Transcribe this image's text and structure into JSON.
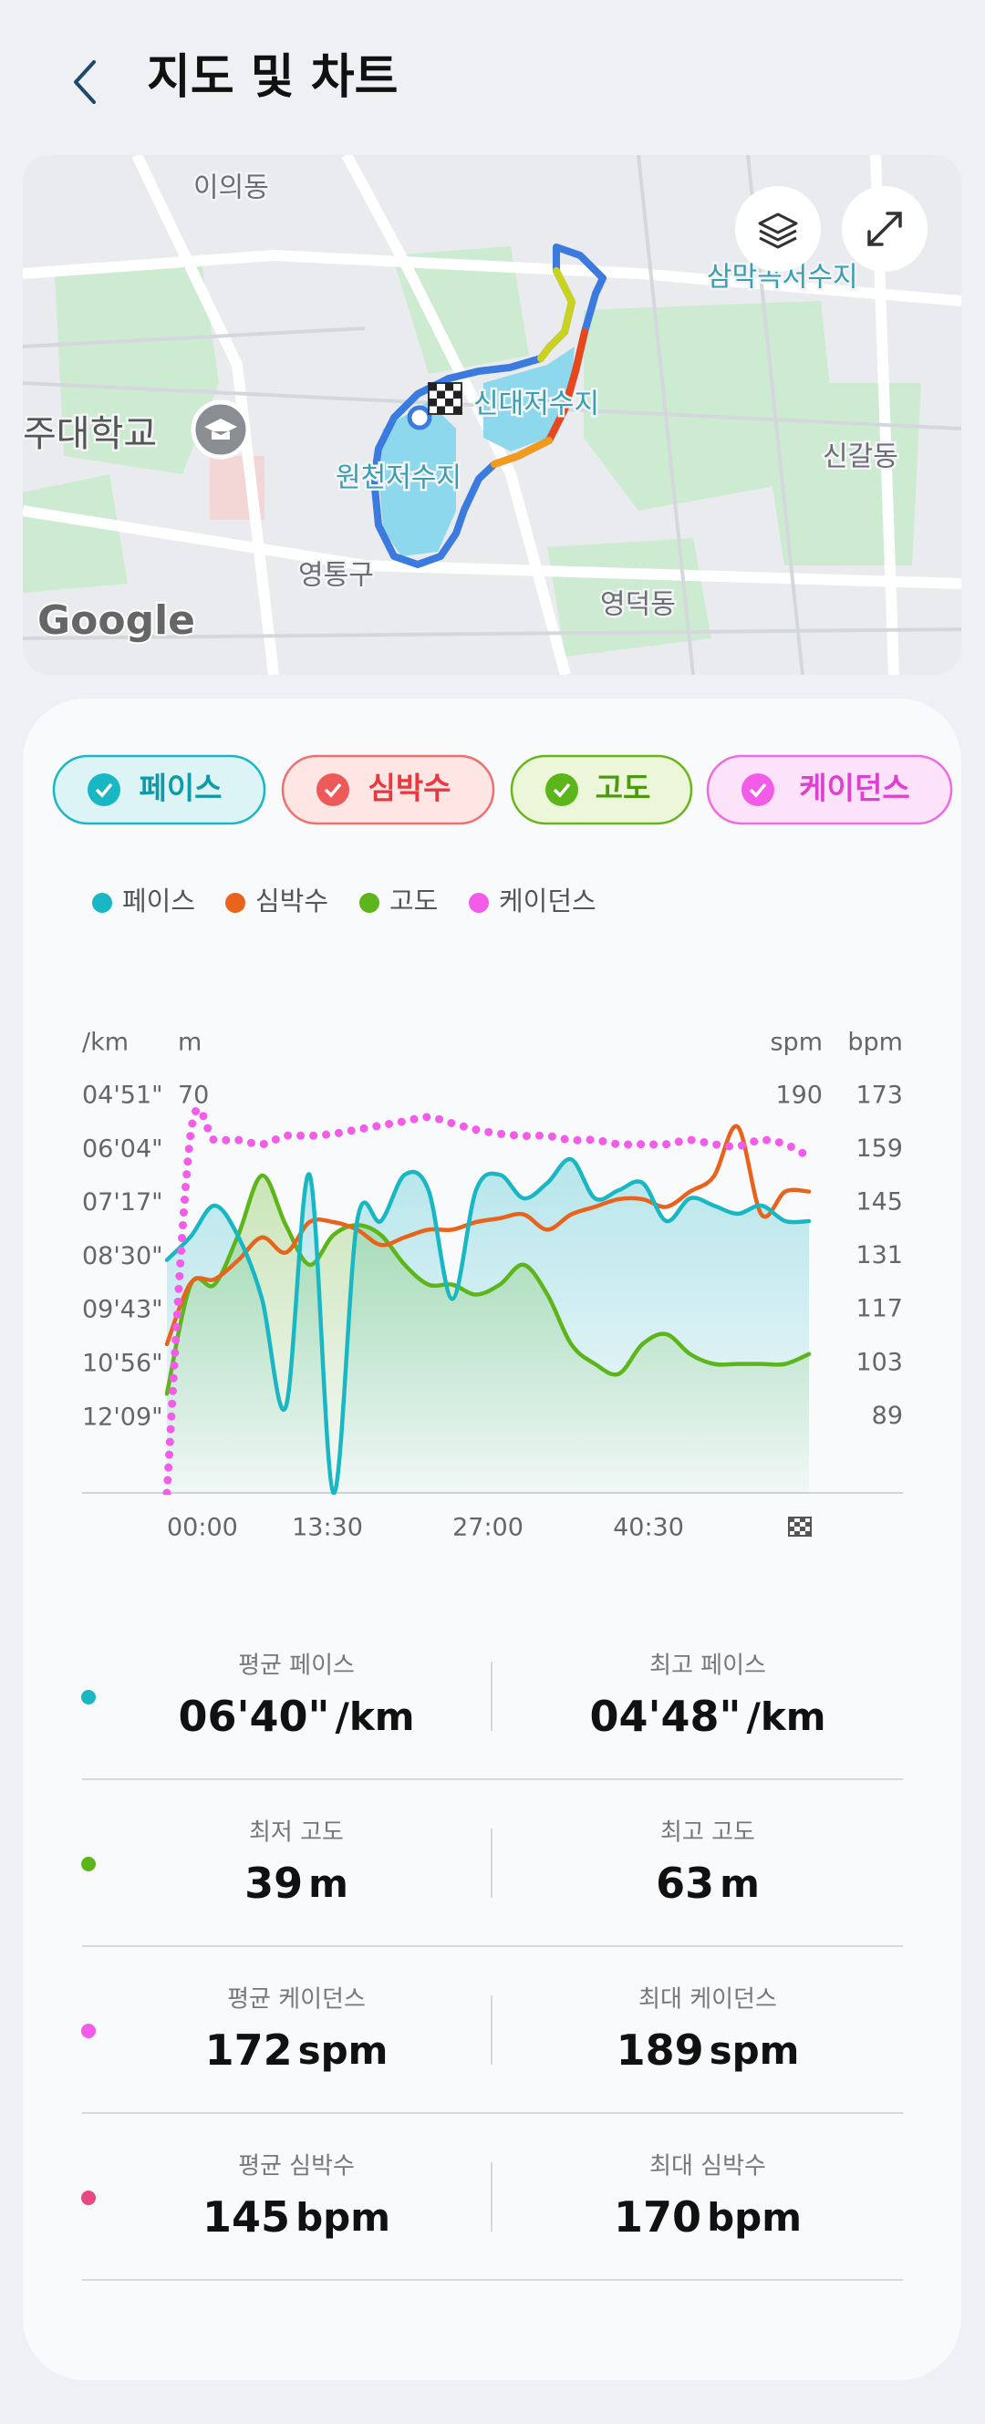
{
  "header": {
    "title": "지도 및 차트"
  },
  "map": {
    "labels": [
      "이의동",
      "삼막곡저수지",
      "신대저수지",
      "원천저수지",
      "주대학교",
      "신갈동",
      "영통구",
      "영덕동"
    ],
    "attribution": "Google"
  },
  "chart_data": {
    "type": "line",
    "x": [
      0,
      2,
      4,
      6,
      8,
      10,
      12,
      14,
      16,
      18,
      20,
      22,
      24,
      26,
      28,
      30,
      32,
      34,
      36,
      38,
      40,
      42,
      44,
      46,
      48,
      50,
      52,
      54
    ],
    "xlim": [
      0,
      54
    ],
    "xticks": [
      {
        "value": 0,
        "label": "00:00"
      },
      {
        "value": 13.5,
        "label": "13:30"
      },
      {
        "value": 27,
        "label": "27:00"
      },
      {
        "value": 40.5,
        "label": "40:30"
      }
    ],
    "axes": [
      {
        "title": "/km",
        "lim": [
          831,
          291
        ],
        "ticks": [
          {
            "value": 291,
            "label": "04'51\""
          },
          {
            "value": 364,
            "label": "06'04\""
          },
          {
            "value": 437,
            "label": "07'17\""
          },
          {
            "value": 510,
            "label": "08'30\""
          },
          {
            "value": 583,
            "label": "09'43\""
          },
          {
            "value": 656,
            "label": "10'56\""
          },
          {
            "value": 729,
            "label": "12'09\""
          }
        ]
      },
      {
        "title": "m",
        "lim": [
          30,
          70
        ],
        "ticks": [
          70
        ]
      },
      {
        "title": "spm",
        "lim": [
          0,
          190
        ],
        "ticks": [
          190
        ]
      },
      {
        "title": "bpm",
        "lim": [
          69,
          173
        ],
        "ticks": [
          173,
          159,
          145,
          131,
          117,
          103,
          89
        ]
      }
    ],
    "series": [
      {
        "name": "페이스",
        "color": "#19b7c3",
        "axis": 0,
        "fill": true,
        "values": [
          514,
          482,
          440,
          482,
          567,
          714,
          398,
          831,
          461,
          461,
          398,
          419,
          567,
          419,
          398,
          430,
          409,
          377,
          430,
          419,
          409,
          461,
          430,
          440,
          451,
          440,
          461,
          461
        ]
      },
      {
        "name": "심박수",
        "color": "#e8641c",
        "axis": 3,
        "values": [
          108,
          124,
          125,
          130,
          136,
          132,
          140,
          140,
          138,
          134,
          136,
          138,
          138,
          140,
          141,
          142,
          138,
          142,
          144,
          146,
          146,
          144,
          148,
          152,
          165,
          142,
          148,
          148
        ]
      },
      {
        "name": "고도",
        "color": "#5cb51a",
        "axis": 1,
        "fill": true,
        "values": [
          40,
          51,
          51,
          56,
          62,
          57,
          53,
          56,
          57,
          56,
          53,
          51,
          51,
          50,
          51,
          53,
          50,
          45,
          43,
          42,
          45,
          46,
          44,
          43,
          43,
          43,
          43,
          44
        ]
      },
      {
        "name": "케이던스",
        "color": "#f25ce8",
        "axis": 2,
        "style": "dotted",
        "values": [
          0,
          172,
          169,
          169,
          167,
          171,
          171,
          172,
          174,
          176,
          178,
          180,
          177,
          174,
          172,
          171,
          171,
          169,
          169,
          167,
          167,
          167,
          169,
          167,
          166,
          169,
          167,
          161
        ]
      }
    ]
  },
  "stats": {
    "rows": [
      {
        "color": "#19b7c3",
        "items": [
          {
            "label": "평균 페이스",
            "value": "06'40\"",
            "unit": "/km"
          },
          {
            "label": "최고 페이스",
            "value": "04'48\"",
            "unit": "/km"
          }
        ]
      },
      {
        "color": "#5cb51a",
        "items": [
          {
            "label": "최저 고도",
            "value": "39",
            "unit": "m"
          },
          {
            "label": "최고 고도",
            "value": "63",
            "unit": "m"
          }
        ]
      },
      {
        "color": "#f25ce8",
        "items": [
          {
            "label": "평균 케이던스",
            "value": "172",
            "unit": "spm"
          },
          {
            "label": "최대 케이던스",
            "value": "189",
            "unit": "spm"
          }
        ]
      },
      {
        "color": "#e84a7f",
        "items": [
          {
            "label": "평균 심박수",
            "value": "145",
            "unit": "bpm"
          },
          {
            "label": "최대 심박수",
            "value": "170",
            "unit": "bpm"
          }
        ]
      }
    ]
  }
}
